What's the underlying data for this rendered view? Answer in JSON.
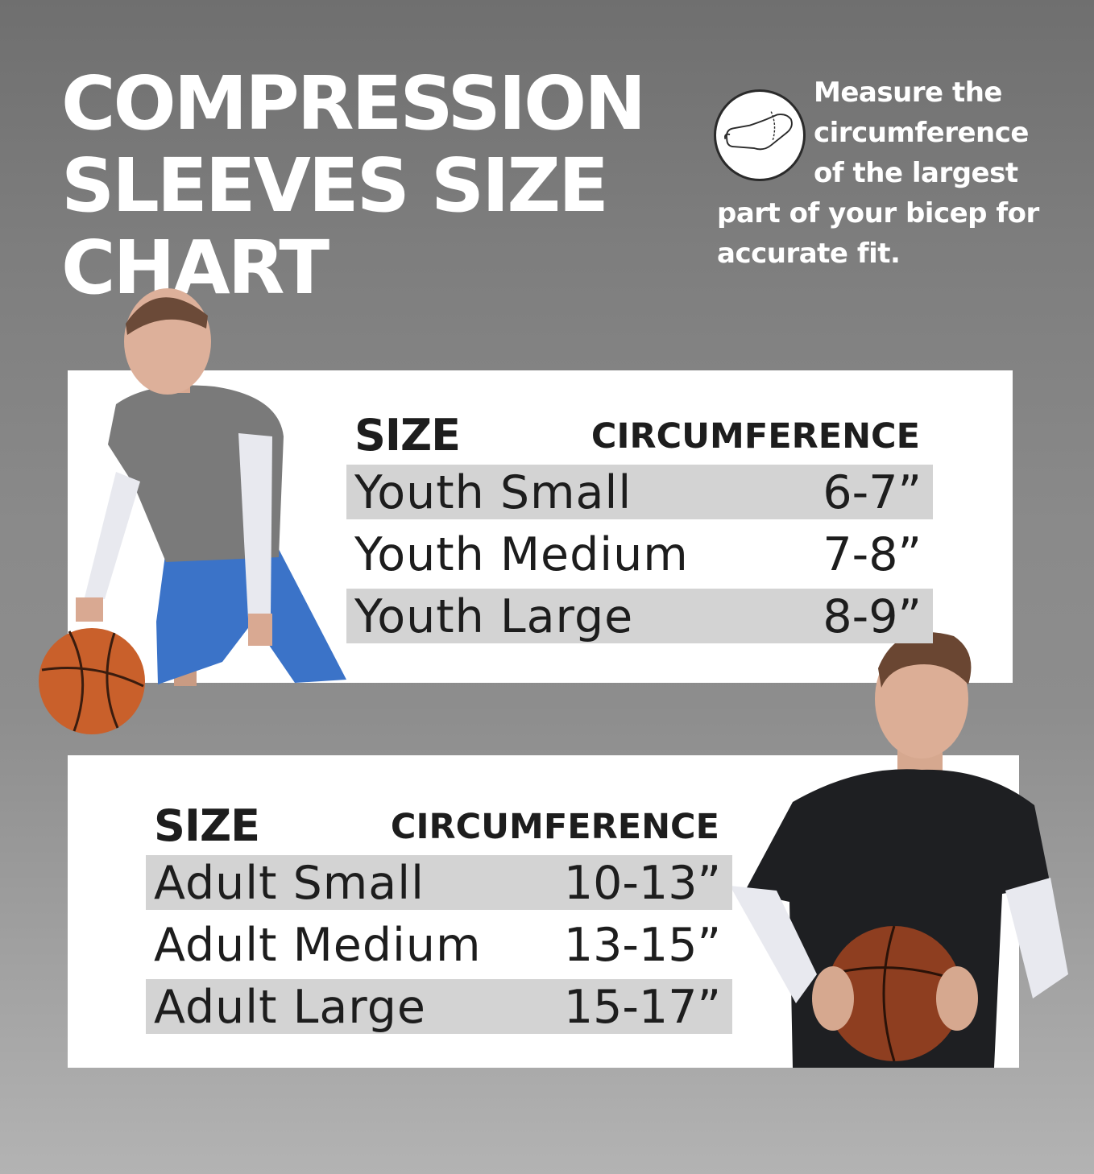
{
  "title": {
    "line1": "COMPRESSION",
    "line2": "SLEEVES SIZE",
    "line3": "CHART"
  },
  "measure_note": {
    "line1": "Measure the",
    "line2": "circumference",
    "line3": "of the largest",
    "line4": "part of your bicep for",
    "line5": "accurate fit.",
    "icon": "arm-measure-icon"
  },
  "youth_table": {
    "header_size": "SIZE",
    "header_circumference": "CIRCUMFERENCE",
    "rows": [
      {
        "size": "Youth Small",
        "circumference": "6-7”"
      },
      {
        "size": "Youth Medium",
        "circumference": "7-8”"
      },
      {
        "size": "Youth Large",
        "circumference": "8-9”"
      }
    ]
  },
  "adult_table": {
    "header_size": "SIZE",
    "header_circumference": "CIRCUMFERENCE",
    "rows": [
      {
        "size": "Adult Small",
        "circumference": "10-13”"
      },
      {
        "size": "Adult Medium",
        "circumference": "13-15”"
      },
      {
        "size": "Adult Large",
        "circumference": "15-17”"
      }
    ]
  },
  "colors": {
    "panel": "#ffffff",
    "row_shade": "#d3d3d3",
    "title_text": "#ffffff",
    "table_text": "#1d1d1d"
  }
}
